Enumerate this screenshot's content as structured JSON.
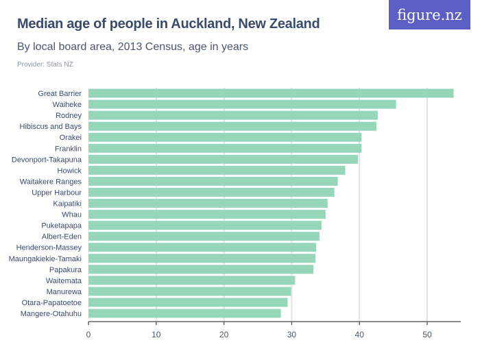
{
  "header": {
    "title": "Median age of people in Auckland, New Zealand",
    "subtitle": "By local board area, 2013 Census, age in years",
    "provider": "Provider: Stats NZ",
    "logo": "figure.nz"
  },
  "colors": {
    "bar": "#96d6b9",
    "logo_bg": "#5b5fc4",
    "title": "#3a4a6b"
  },
  "chart_data": {
    "type": "bar",
    "orientation": "horizontal",
    "title": "Median age of people in Auckland, New Zealand",
    "subtitle": "By local board area, 2013 Census, age in years",
    "categories": [
      "Great Barrier",
      "Waiheke",
      "Rodney",
      "Hibiscus and Bays",
      "Orakei",
      "Franklin",
      "Devonport-Takapuna",
      "Howick",
      "Waitakere Ranges",
      "Upper Harbour",
      "Kaipatiki",
      "Whau",
      "Puketapapa",
      "Albert-Eden",
      "Henderson-Massey",
      "Maungakiekie-Tamaki",
      "Papakura",
      "Waitemata",
      "Manurewa",
      "Otara-Papatoetoe",
      "Mangere-Otahuhu"
    ],
    "values": [
      53.9,
      45.4,
      42.7,
      42.5,
      40.3,
      40.3,
      39.8,
      37.9,
      36.8,
      36.3,
      35.3,
      35.0,
      34.4,
      34.1,
      33.6,
      33.5,
      33.2,
      30.5,
      29.9,
      29.4,
      28.4
    ],
    "xticks": [
      "0",
      "10",
      "20",
      "30",
      "40",
      "50"
    ],
    "xlim": [
      0,
      55
    ],
    "grid": true,
    "legend": "none"
  }
}
